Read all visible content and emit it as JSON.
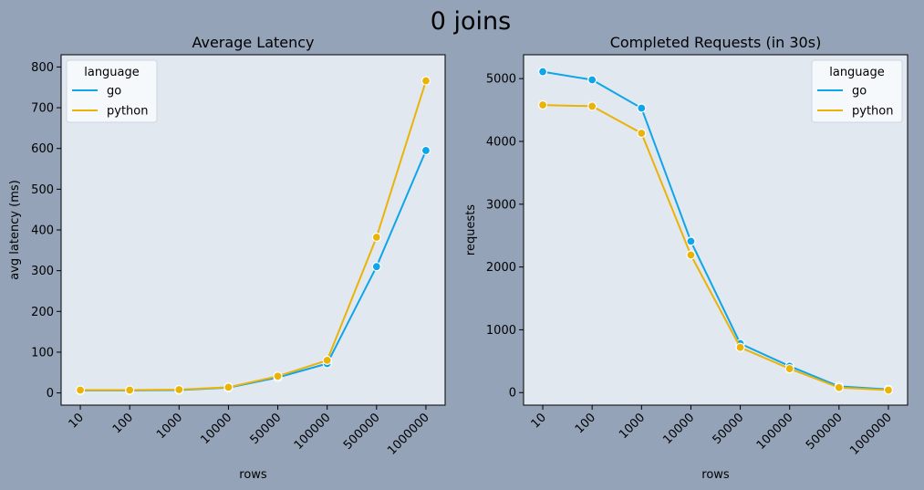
{
  "figure": {
    "suptitle": "0 joins"
  },
  "colors": {
    "background": "#94a3b8",
    "plot_bg": "#e2e8f0",
    "go": "#0ea5e9",
    "python": "#eab308",
    "legend_bg": "#f8fafc"
  },
  "chart_data": [
    {
      "type": "line",
      "title": "Average Latency",
      "xlabel": "rows",
      "ylabel": "avg latency (ms)",
      "categories": [
        "10",
        "100",
        "1000",
        "10000",
        "50000",
        "100000",
        "500000",
        "1000000"
      ],
      "yticks": [
        0,
        100,
        200,
        300,
        400,
        500,
        600,
        700,
        800
      ],
      "ylim": [
        -30,
        830
      ],
      "legend": {
        "title": "language",
        "position": "top-left"
      },
      "series": [
        {
          "name": "go",
          "color": "#0ea5e9",
          "values": [
            6,
            6,
            7,
            13,
            38,
            72,
            310,
            595
          ]
        },
        {
          "name": "python",
          "color": "#eab308",
          "values": [
            7,
            7,
            8,
            14,
            41,
            80,
            382,
            766
          ]
        }
      ]
    },
    {
      "type": "line",
      "title": "Completed Requests (in 30s)",
      "xlabel": "rows",
      "ylabel": "requests",
      "categories": [
        "10",
        "100",
        "1000",
        "10000",
        "50000",
        "100000",
        "500000",
        "1000000"
      ],
      "yticks": [
        0,
        1000,
        2000,
        3000,
        4000,
        5000
      ],
      "ylim": [
        -200,
        5380
      ],
      "legend": {
        "title": "language",
        "position": "top-right"
      },
      "series": [
        {
          "name": "go",
          "color": "#0ea5e9",
          "values": [
            5110,
            4980,
            4530,
            2410,
            780,
            420,
            100,
            50
          ]
        },
        {
          "name": "python",
          "color": "#eab308",
          "values": [
            4580,
            4560,
            4130,
            2190,
            720,
            380,
            80,
            40
          ]
        }
      ]
    }
  ]
}
